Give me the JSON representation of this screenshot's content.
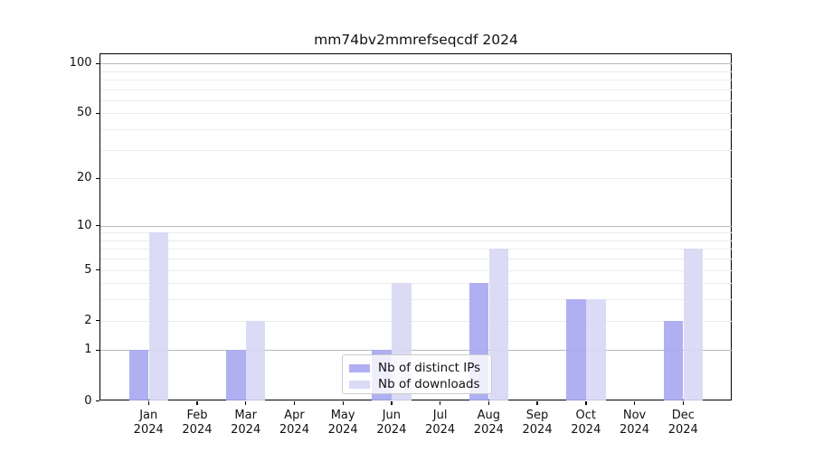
{
  "chart_data": {
    "type": "bar",
    "title": "mm74bv2mmrefseqcdf 2024",
    "categories": [
      {
        "month": "Jan",
        "year": "2024"
      },
      {
        "month": "Feb",
        "year": "2024"
      },
      {
        "month": "Mar",
        "year": "2024"
      },
      {
        "month": "Apr",
        "year": "2024"
      },
      {
        "month": "May",
        "year": "2024"
      },
      {
        "month": "Jun",
        "year": "2024"
      },
      {
        "month": "Jul",
        "year": "2024"
      },
      {
        "month": "Aug",
        "year": "2024"
      },
      {
        "month": "Sep",
        "year": "2024"
      },
      {
        "month": "Oct",
        "year": "2024"
      },
      {
        "month": "Nov",
        "year": "2024"
      },
      {
        "month": "Dec",
        "year": "2024"
      }
    ],
    "series": [
      {
        "name": "Nb of distinct IPs",
        "color": "rgba(168,168,240,0.92)",
        "values": [
          1,
          0,
          1,
          0,
          0,
          1,
          0,
          4,
          0,
          3,
          0,
          2
        ]
      },
      {
        "name": "Nb of downloads",
        "color": "rgba(216,216,245,0.92)",
        "values": [
          9,
          0,
          2,
          0,
          0,
          4,
          0,
          7,
          0,
          3,
          0,
          7
        ]
      }
    ],
    "xlabel": "",
    "ylabel": "",
    "yscale": "log1p",
    "ylim": [
      0,
      115
    ],
    "yticks_major": [
      0,
      1,
      2,
      5,
      10,
      20,
      50,
      100
    ],
    "yticks_minor": [
      3,
      4,
      6,
      7,
      8,
      9,
      30,
      40,
      60,
      70,
      80,
      90
    ],
    "grid": true,
    "legend_position": "lower-center",
    "colors": {
      "decade_gridline": "#b9b9b9",
      "minor_gridline": "#ececec",
      "axis": "#000000"
    }
  }
}
